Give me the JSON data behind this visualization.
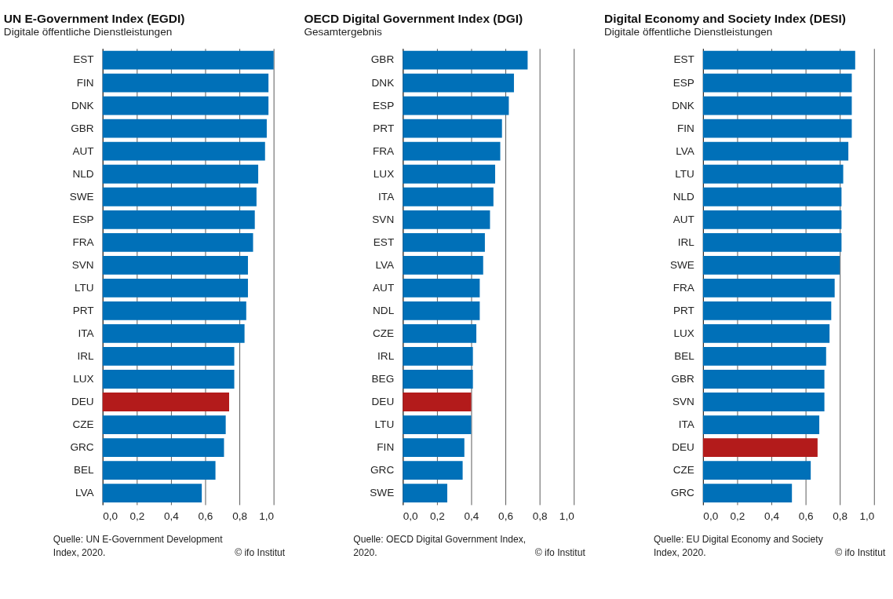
{
  "chart_data": [
    {
      "type": "bar",
      "orientation": "horizontal",
      "title": "UN E-Government Index (EGDI)",
      "subtitle": "Digitale öffentliche Dienstleistungen",
      "categories": [
        "EST",
        "FIN",
        "DNK",
        "GBR",
        "AUT",
        "NLD",
        "SWE",
        "ESP",
        "FRA",
        "SVN",
        "LTU",
        "PRT",
        "ITA",
        "IRL",
        "LUX",
        "DEU",
        "CZE",
        "GRC",
        "BEL",
        "LVA"
      ],
      "values": [
        1.0,
        0.97,
        0.97,
        0.96,
        0.95,
        0.91,
        0.9,
        0.89,
        0.88,
        0.85,
        0.85,
        0.84,
        0.83,
        0.77,
        0.77,
        0.74,
        0.72,
        0.71,
        0.66,
        0.58
      ],
      "colors": [
        "#0070b8",
        "#0070b8",
        "#0070b8",
        "#0070b8",
        "#0070b8",
        "#0070b8",
        "#0070b8",
        "#0070b8",
        "#0070b8",
        "#0070b8",
        "#0070b8",
        "#0070b8",
        "#0070b8",
        "#0070b8",
        "#0070b8",
        "#b31b1b",
        "#0070b8",
        "#0070b8",
        "#0070b8",
        "#0070b8"
      ],
      "xlim": [
        0,
        1.0
      ],
      "xticks": [
        {
          "value": 0,
          "label": "0,0"
        },
        {
          "value": 0.2,
          "label": "0,2"
        },
        {
          "value": 0.4,
          "label": "0,4"
        },
        {
          "value": 0.6,
          "label": "0,6"
        },
        {
          "value": 0.8,
          "label": "0,8"
        },
        {
          "value": 1.0,
          "label": "1,0"
        }
      ],
      "grid": "x",
      "annotations": [
        "Quelle: UN E-Government Development Index, 2020.",
        "© ifo Institut"
      ]
    },
    {
      "type": "bar",
      "orientation": "horizontal",
      "title": "OECD Digital Government Index (DGI)",
      "subtitle": "Gesamtergebnis",
      "categories": [
        "GBR",
        "DNK",
        "ESP",
        "PRT",
        "FRA",
        "LUX",
        "ITA",
        "SVN",
        "EST",
        "LVA",
        "AUT",
        "NDL",
        "CZE",
        "IRL",
        "BEG",
        "DEU",
        "LTU",
        "FIN",
        "GRC",
        "SWE"
      ],
      "values": [
        0.73,
        0.65,
        0.62,
        0.58,
        0.57,
        0.54,
        0.53,
        0.51,
        0.48,
        0.47,
        0.45,
        0.45,
        0.43,
        0.41,
        0.41,
        0.4,
        0.4,
        0.36,
        0.35,
        0.26
      ],
      "colors": [
        "#0070b8",
        "#0070b8",
        "#0070b8",
        "#0070b8",
        "#0070b8",
        "#0070b8",
        "#0070b8",
        "#0070b8",
        "#0070b8",
        "#0070b8",
        "#0070b8",
        "#0070b8",
        "#0070b8",
        "#0070b8",
        "#0070b8",
        "#b31b1b",
        "#0070b8",
        "#0070b8",
        "#0070b8",
        "#0070b8"
      ],
      "xlim": [
        0,
        1.0
      ],
      "xticks": [
        {
          "value": 0,
          "label": "0,0"
        },
        {
          "value": 0.2,
          "label": "0,2"
        },
        {
          "value": 0.4,
          "label": "0,4"
        },
        {
          "value": 0.6,
          "label": "0,6"
        },
        {
          "value": 0.8,
          "label": "0,8"
        },
        {
          "value": 1.0,
          "label": "1,0"
        }
      ],
      "grid": "x",
      "annotations": [
        "Quelle: OECD Digital Government Index, 2020.",
        "© ifo Institut"
      ]
    },
    {
      "type": "bar",
      "orientation": "horizontal",
      "title": "Digital Economy and Society Index (DESI)",
      "subtitle": "Digitale öffentliche Dienstleistungen",
      "categories": [
        "EST",
        "ESP",
        "DNK",
        "FIN",
        "LVA",
        "LTU",
        "NLD",
        "AUT",
        "IRL",
        "SWE",
        "FRA",
        "PRT",
        "LUX",
        "BEL",
        "GBR",
        "SVN",
        "ITA",
        "DEU",
        "CZE",
        "GRC"
      ],
      "values": [
        0.89,
        0.87,
        0.87,
        0.87,
        0.85,
        0.82,
        0.81,
        0.81,
        0.81,
        0.8,
        0.77,
        0.75,
        0.74,
        0.72,
        0.71,
        0.71,
        0.68,
        0.67,
        0.63,
        0.52
      ],
      "colors": [
        "#0070b8",
        "#0070b8",
        "#0070b8",
        "#0070b8",
        "#0070b8",
        "#0070b8",
        "#0070b8",
        "#0070b8",
        "#0070b8",
        "#0070b8",
        "#0070b8",
        "#0070b8",
        "#0070b8",
        "#0070b8",
        "#0070b8",
        "#0070b8",
        "#0070b8",
        "#b31b1b",
        "#0070b8",
        "#0070b8"
      ],
      "xlim": [
        0,
        1.0
      ],
      "xticks": [
        {
          "value": 0,
          "label": "0,0"
        },
        {
          "value": 0.2,
          "label": "0,2"
        },
        {
          "value": 0.4,
          "label": "0,4"
        },
        {
          "value": 0.6,
          "label": "0,6"
        },
        {
          "value": 0.8,
          "label": "0,8"
        },
        {
          "value": 1.0,
          "label": "1,0"
        }
      ],
      "grid": "x",
      "annotations": [
        "Quelle: EU Digital Economy and Society Index, 2020.",
        "© ifo Institut"
      ]
    }
  ]
}
